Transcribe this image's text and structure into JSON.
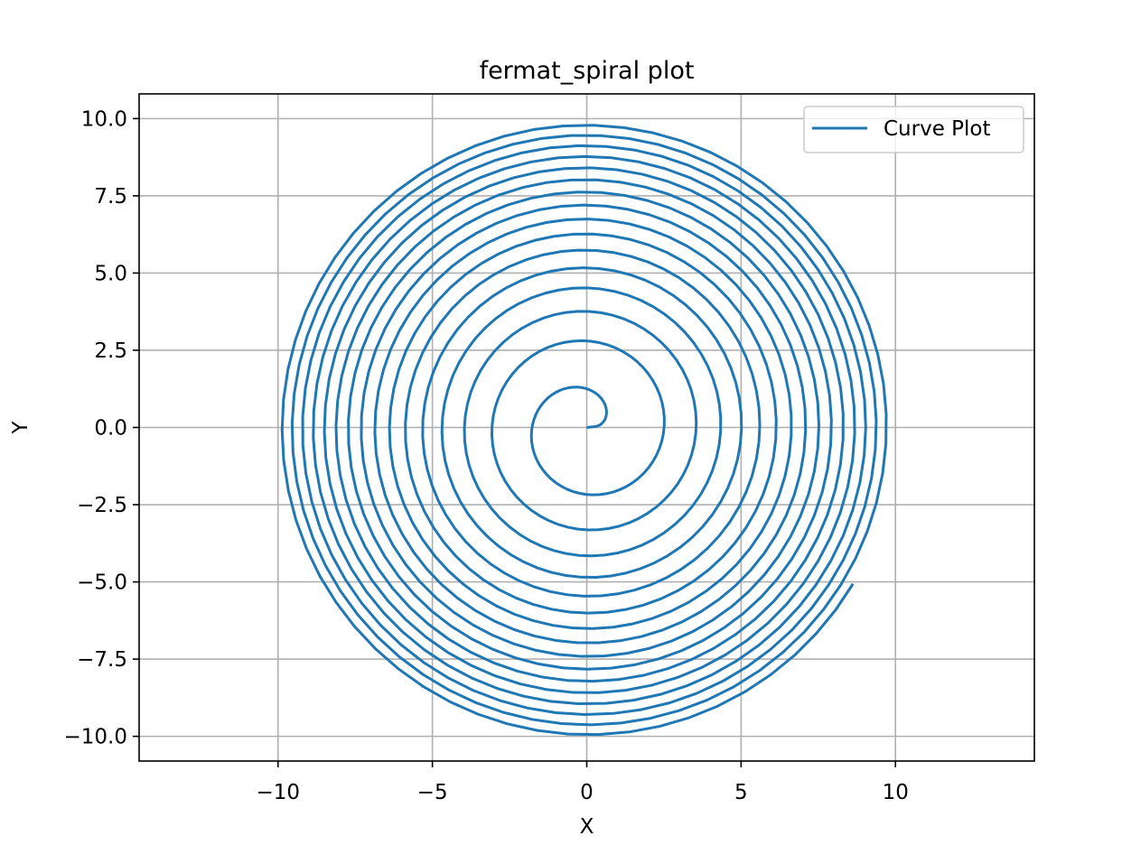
{
  "chart_data": {
    "type": "line",
    "title": "fermat_spiral plot",
    "xlabel": "X",
    "ylabel": "Y",
    "xlim": [
      -14.5,
      14.5
    ],
    "ylim": [
      -10.8,
      10.8
    ],
    "xticks": [
      -10,
      -5,
      0,
      5,
      10
    ],
    "xtick_labels": [
      "−10",
      "−5",
      "0",
      "5",
      "10"
    ],
    "yticks": [
      10.0,
      7.5,
      5.0,
      2.5,
      0.0,
      -2.5,
      -5.0,
      -7.5,
      -10.0
    ],
    "ytick_labels": [
      "10.0",
      "7.5",
      "5.0",
      "2.5",
      "0.0",
      "−2.5",
      "−5.0",
      "−7.5",
      "−10.0"
    ],
    "grid": true,
    "legend_position": "top-right",
    "series": [
      {
        "name": "Curve Plot",
        "color": "#1f77b4",
        "curve": "fermat_spiral",
        "r_of_theta": "sqrt(theta)",
        "theta_range_rad": [
          0,
          100
        ],
        "r_max": 10.0
      }
    ]
  }
}
